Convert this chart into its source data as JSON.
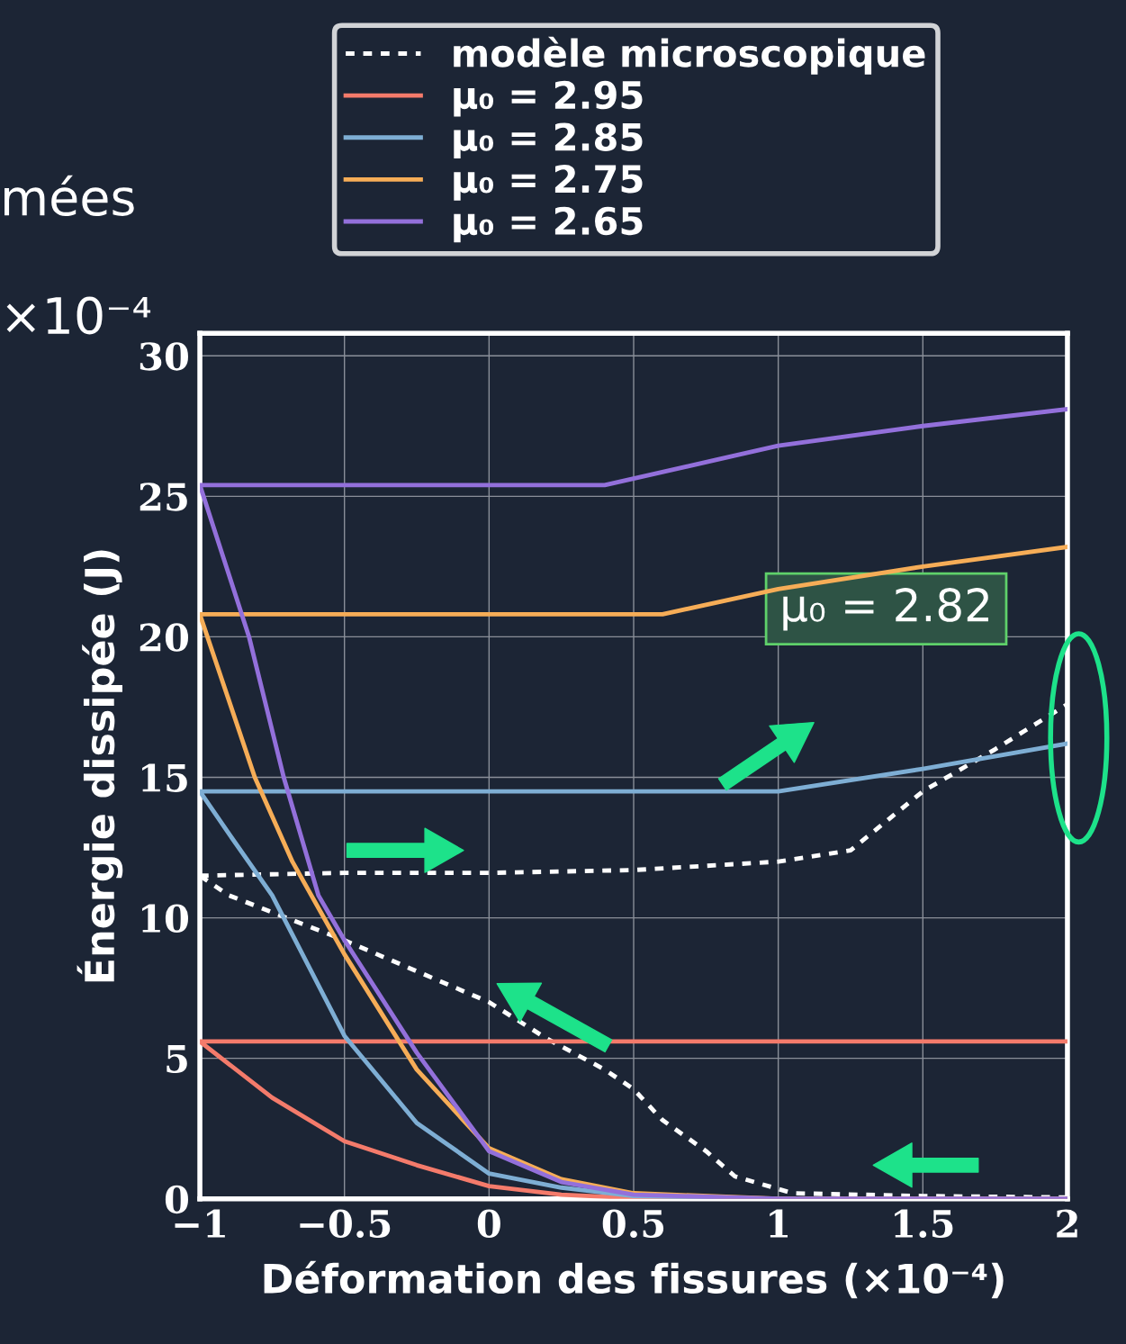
{
  "chart_data": {
    "type": "line",
    "xlabel": "Déformation des fissures (×10⁻⁴)",
    "ylabel": "Énergie dissipée (J)",
    "xlim": [
      -1,
      2
    ],
    "ylim": [
      0,
      30.8
    ],
    "xticks": [
      {
        "value": -1,
        "label": "−1"
      },
      {
        "value": -0.5,
        "label": "−0.5"
      },
      0,
      0.5,
      1,
      1.5,
      2
    ],
    "yticks": [
      0,
      5,
      10,
      15,
      20,
      25,
      30
    ],
    "grid": true,
    "legend": "top",
    "annotations": [
      "μ₀ = 2.82",
      "mées",
      "×10⁻⁴"
    ],
    "series": [
      {
        "name": "modèle microscopique",
        "color": "#ffffff",
        "line_style": "dotted",
        "x": [
          -1,
          -0.5,
          0,
          0.5,
          1,
          1.25,
          1.5,
          1.75,
          2
        ],
        "values": [
          11.5,
          11.6,
          11.6,
          11.7,
          12.0,
          12.4,
          14.5,
          16.0,
          17.6
        ]
      },
      {
        "color": "#ffffff",
        "line_style": "dotted",
        "x": [
          2,
          1.5,
          1.05,
          0.85,
          0.75,
          0.6,
          0.5,
          0.4,
          0.2,
          0,
          -0.5,
          -0.75,
          -0.9,
          -1
        ],
        "values": [
          0.05,
          0.1,
          0.2,
          0.8,
          1.7,
          2.8,
          3.9,
          4.6,
          5.7,
          7.0,
          9.2,
          10.2,
          10.8,
          11.5
        ]
      },
      {
        "name": "μ₀ = 2.95",
        "color": "#f47b6b",
        "line_style": "solid",
        "x": [
          2,
          1,
          0.5,
          0.25,
          0,
          -0.25,
          -0.5,
          -0.75,
          -1,
          2
        ],
        "values": [
          0,
          0,
          0.03,
          0.15,
          0.45,
          1.2,
          2.05,
          3.6,
          5.6,
          5.6
        ]
      },
      {
        "name": "μ₀ = 2.85",
        "color": "#7eaed4",
        "line_style": "solid",
        "x": [
          2,
          1,
          0.5,
          0.25,
          0,
          -0.25,
          -0.5,
          -0.75,
          -0.9,
          -1,
          1,
          1.5,
          2
        ],
        "values": [
          0,
          0,
          0.1,
          0.4,
          0.9,
          2.7,
          5.8,
          10.8,
          13.0,
          14.5,
          14.5,
          15.3,
          16.2
        ]
      },
      {
        "name": "μ₀ = 2.75",
        "color": "#f6ad57",
        "line_style": "solid",
        "x": [
          2,
          1,
          0.5,
          0.25,
          0,
          -0.25,
          -0.5,
          -0.68,
          -0.81,
          -1,
          0.6,
          1,
          1.5,
          2
        ],
        "values": [
          0,
          0,
          0.2,
          0.7,
          1.8,
          4.6,
          8.7,
          12.0,
          15.0,
          20.8,
          20.8,
          21.7,
          22.5,
          23.2
        ]
      },
      {
        "name": "μ₀ = 2.65",
        "color": "#9370db",
        "line_style": "solid",
        "x": [
          2,
          1,
          0.5,
          0.25,
          0,
          -0.25,
          -0.5,
          -0.59,
          -0.71,
          -0.83,
          -1,
          0.4,
          1,
          1.5,
          2
        ],
        "values": [
          0,
          0,
          0.15,
          0.6,
          1.7,
          5.2,
          9.2,
          10.8,
          15.0,
          20.0,
          25.4,
          25.4,
          26.8,
          27.5,
          28.1
        ]
      }
    ]
  }
}
